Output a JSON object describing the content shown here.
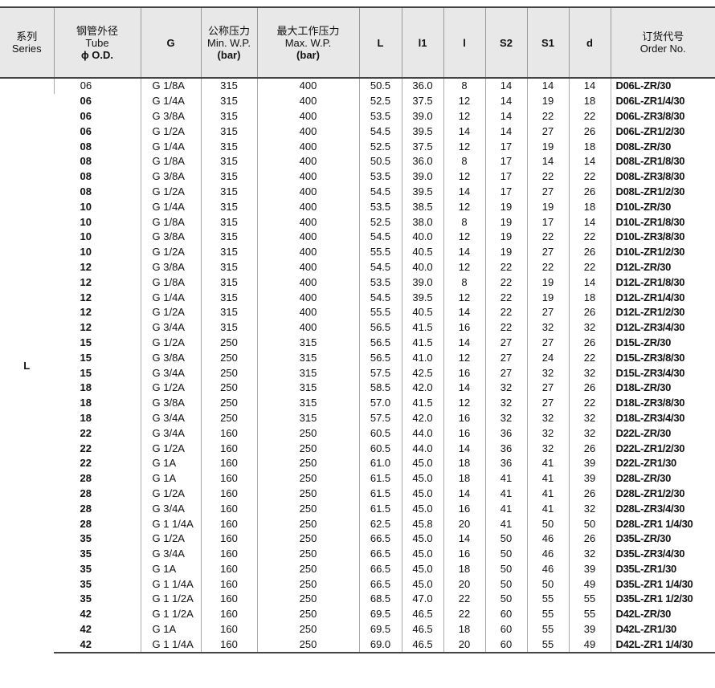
{
  "headers": [
    {
      "lines": [
        "系列",
        "Series"
      ]
    },
    {
      "lines": [
        "钢管外径",
        "Tube",
        "ϕ O.D."
      ]
    },
    {
      "lines": [
        "G"
      ]
    },
    {
      "lines": [
        "公称压力",
        "Min. W.P.",
        "(bar)"
      ]
    },
    {
      "lines": [
        "最大工作压力",
        "Max. W.P.",
        "(bar)"
      ]
    },
    {
      "lines": [
        "L"
      ]
    },
    {
      "lines": [
        "l1"
      ]
    },
    {
      "lines": [
        "l"
      ]
    },
    {
      "lines": [
        "S2"
      ]
    },
    {
      "lines": [
        "S1"
      ]
    },
    {
      "lines": [
        "d"
      ]
    },
    {
      "lines": [
        "订货代号",
        "Order No."
      ]
    }
  ],
  "series": "L",
  "rows": [
    [
      "06",
      "G 1/8A",
      "315",
      "400",
      "50.5",
      "36.0",
      "8",
      "14",
      "14",
      "14",
      "D06L-ZR/30"
    ],
    [
      "06",
      "G 1/4A",
      "315",
      "400",
      "52.5",
      "37.5",
      "12",
      "14",
      "19",
      "18",
      "D06L-ZR1/4/30"
    ],
    [
      "06",
      "G 3/8A",
      "315",
      "400",
      "53.5",
      "39.0",
      "12",
      "14",
      "22",
      "22",
      "D06L-ZR3/8/30"
    ],
    [
      "06",
      "G 1/2A",
      "315",
      "400",
      "54.5",
      "39.5",
      "14",
      "14",
      "27",
      "26",
      "D06L-ZR1/2/30"
    ],
    [
      "08",
      "G 1/4A",
      "315",
      "400",
      "52.5",
      "37.5",
      "12",
      "17",
      "19",
      "18",
      "D08L-ZR/30"
    ],
    [
      "08",
      "G 1/8A",
      "315",
      "400",
      "50.5",
      "36.0",
      "8",
      "17",
      "14",
      "14",
      "D08L-ZR1/8/30"
    ],
    [
      "08",
      "G 3/8A",
      "315",
      "400",
      "53.5",
      "39.0",
      "12",
      "17",
      "22",
      "22",
      "D08L-ZR3/8/30"
    ],
    [
      "08",
      "G 1/2A",
      "315",
      "400",
      "54.5",
      "39.5",
      "14",
      "17",
      "27",
      "26",
      "D08L-ZR1/2/30"
    ],
    [
      "10",
      "G 1/4A",
      "315",
      "400",
      "53.5",
      "38.5",
      "12",
      "19",
      "19",
      "18",
      "D10L-ZR/30"
    ],
    [
      "10",
      "G 1/8A",
      "315",
      "400",
      "52.5",
      "38.0",
      "8",
      "19",
      "17",
      "14",
      "D10L-ZR1/8/30"
    ],
    [
      "10",
      "G 3/8A",
      "315",
      "400",
      "54.5",
      "40.0",
      "12",
      "19",
      "22",
      "22",
      "D10L-ZR3/8/30"
    ],
    [
      "10",
      "G 1/2A",
      "315",
      "400",
      "55.5",
      "40.5",
      "14",
      "19",
      "27",
      "26",
      "D10L-ZR1/2/30"
    ],
    [
      "12",
      "G 3/8A",
      "315",
      "400",
      "54.5",
      "40.0",
      "12",
      "22",
      "22",
      "22",
      "D12L-ZR/30"
    ],
    [
      "12",
      "G 1/8A",
      "315",
      "400",
      "53.5",
      "39.0",
      "8",
      "22",
      "19",
      "14",
      "D12L-ZR1/8/30"
    ],
    [
      "12",
      "G 1/4A",
      "315",
      "400",
      "54.5",
      "39.5",
      "12",
      "22",
      "19",
      "18",
      "D12L-ZR1/4/30"
    ],
    [
      "12",
      "G 1/2A",
      "315",
      "400",
      "55.5",
      "40.5",
      "14",
      "22",
      "27",
      "26",
      "D12L-ZR1/2/30"
    ],
    [
      "12",
      "G 3/4A",
      "315",
      "400",
      "56.5",
      "41.5",
      "16",
      "22",
      "32",
      "32",
      "D12L-ZR3/4/30"
    ],
    [
      "15",
      "G 1/2A",
      "250",
      "315",
      "56.5",
      "41.5",
      "14",
      "27",
      "27",
      "26",
      "D15L-ZR/30"
    ],
    [
      "15",
      "G 3/8A",
      "250",
      "315",
      "56.5",
      "41.0",
      "12",
      "27",
      "24",
      "22",
      "D15L-ZR3/8/30"
    ],
    [
      "15",
      "G 3/4A",
      "250",
      "315",
      "57.5",
      "42.5",
      "16",
      "27",
      "32",
      "32",
      "D15L-ZR3/4/30"
    ],
    [
      "18",
      "G 1/2A",
      "250",
      "315",
      "58.5",
      "42.0",
      "14",
      "32",
      "27",
      "26",
      "D18L-ZR/30"
    ],
    [
      "18",
      "G 3/8A",
      "250",
      "315",
      "57.0",
      "41.5",
      "12",
      "32",
      "27",
      "22",
      "D18L-ZR3/8/30"
    ],
    [
      "18",
      "G 3/4A",
      "250",
      "315",
      "57.5",
      "42.0",
      "16",
      "32",
      "32",
      "32",
      "D18L-ZR3/4/30"
    ],
    [
      "22",
      "G 3/4A",
      "160",
      "250",
      "60.5",
      "44.0",
      "16",
      "36",
      "32",
      "32",
      "D22L-ZR/30"
    ],
    [
      "22",
      "G 1/2A",
      "160",
      "250",
      "60.5",
      "44.0",
      "14",
      "36",
      "32",
      "26",
      "D22L-ZR1/2/30"
    ],
    [
      "22",
      "G 1A",
      "160",
      "250",
      "61.0",
      "45.0",
      "18",
      "36",
      "41",
      "39",
      "D22L-ZR1/30"
    ],
    [
      "28",
      "G 1A",
      "160",
      "250",
      "61.5",
      "45.0",
      "18",
      "41",
      "41",
      "39",
      "D28L-ZR/30"
    ],
    [
      "28",
      "G 1/2A",
      "160",
      "250",
      "61.5",
      "45.0",
      "14",
      "41",
      "41",
      "26",
      "D28L-ZR1/2/30"
    ],
    [
      "28",
      "G 3/4A",
      "160",
      "250",
      "61.5",
      "45.0",
      "16",
      "41",
      "41",
      "32",
      "D28L-ZR3/4/30"
    ],
    [
      "28",
      "G 1 1/4A",
      "160",
      "250",
      "62.5",
      "45.8",
      "20",
      "41",
      "50",
      "50",
      "D28L-ZR1 1/4/30"
    ],
    [
      "35",
      "G 1/2A",
      "160",
      "250",
      "66.5",
      "45.0",
      "14",
      "50",
      "46",
      "26",
      "D35L-ZR/30"
    ],
    [
      "35",
      "G 3/4A",
      "160",
      "250",
      "66.5",
      "45.0",
      "16",
      "50",
      "46",
      "32",
      "D35L-ZR3/4/30"
    ],
    [
      "35",
      "G 1A",
      "160",
      "250",
      "66.5",
      "45.0",
      "18",
      "50",
      "46",
      "39",
      "D35L-ZR1/30"
    ],
    [
      "35",
      "G 1 1/4A",
      "160",
      "250",
      "66.5",
      "45.0",
      "20",
      "50",
      "50",
      "49",
      "D35L-ZR1 1/4/30"
    ],
    [
      "35",
      "G 1 1/2A",
      "160",
      "250",
      "68.5",
      "47.0",
      "22",
      "50",
      "55",
      "55",
      "D35L-ZR1 1/2/30"
    ],
    [
      "42",
      "G 1 1/2A",
      "160",
      "250",
      "69.5",
      "46.5",
      "22",
      "60",
      "55",
      "55",
      "D42L-ZR/30"
    ],
    [
      "42",
      "G 1A",
      "160",
      "250",
      "69.5",
      "46.5",
      "18",
      "60",
      "55",
      "39",
      "D42L-ZR1/30"
    ],
    [
      "42",
      "G 1 1/4A",
      "160",
      "250",
      "69.0",
      "46.5",
      "20",
      "60",
      "55",
      "49",
      "D42L-ZR1 1/4/30"
    ]
  ]
}
